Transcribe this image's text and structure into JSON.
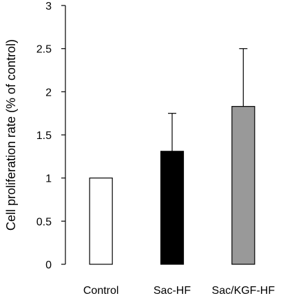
{
  "chart_data": {
    "type": "bar",
    "title": "",
    "xlabel": "",
    "ylabel": "Cell proliferation rate (% of control)",
    "ylim": [
      0,
      3
    ],
    "yticks": [
      "0",
      "0.5",
      "1",
      "1.5",
      "2",
      "2.5",
      "3"
    ],
    "grid": false,
    "legend": "none",
    "categories": [
      "Control",
      "Sac-HF",
      "Sac/KGF-HF"
    ],
    "values": [
      1.0,
      1.31,
      1.83
    ],
    "errors": [
      0.0,
      0.44,
      0.67
    ],
    "colors": [
      "#ffffff",
      "#000000",
      "#999999"
    ]
  }
}
